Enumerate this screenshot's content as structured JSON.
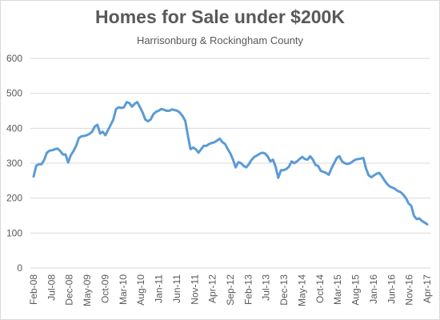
{
  "chart_data": {
    "type": "line",
    "title": "Homes for Sale under $200K",
    "subtitle": "Harrisonburg & Rockingham County",
    "xlabel": "",
    "ylabel": "",
    "ylim": [
      0,
      600
    ],
    "y_ticks": [
      "0",
      "100",
      "200",
      "300",
      "400",
      "500",
      "600"
    ],
    "x_tick_labels": [
      "Feb-08",
      "Jul-08",
      "Dec-08",
      "May-09",
      "Oct-09",
      "Mar-10",
      "Aug-10",
      "Jan-11",
      "Jun-11",
      "Nov-11",
      "Apr-12",
      "Sep-12",
      "Feb-13",
      "Jul-13",
      "Dec-13",
      "May-14",
      "Oct-14",
      "Mar-15",
      "Aug-15",
      "Jan-16",
      "Jun-16",
      "Nov-16",
      "Apr-17"
    ],
    "grid": true,
    "legend": "none",
    "line_color": "#5b9bd5",
    "series": [
      {
        "values": [
          262,
          293,
          297,
          297,
          310,
          330,
          336,
          337,
          340,
          342,
          335,
          325,
          325,
          302,
          323,
          335,
          350,
          372,
          377,
          378,
          380,
          384,
          390,
          405,
          410,
          385,
          390,
          380,
          395,
          410,
          425,
          455,
          460,
          458,
          460,
          475,
          472,
          462,
          470,
          475,
          460,
          445,
          425,
          420,
          425,
          440,
          447,
          450,
          455,
          453,
          450,
          450,
          454,
          452,
          450,
          445,
          435,
          422,
          380,
          340,
          345,
          340,
          330,
          340,
          350,
          350,
          355,
          358,
          360,
          365,
          370,
          360,
          355,
          340,
          328,
          310,
          288,
          303,
          300,
          292,
          288,
          298,
          310,
          318,
          322,
          327,
          330,
          328,
          320,
          305,
          310,
          290,
          258,
          280,
          280,
          283,
          290,
          305,
          300,
          305,
          312,
          318,
          312,
          310,
          320,
          310,
          295,
          292,
          278,
          275,
          272,
          267,
          285,
          300,
          315,
          320,
          305,
          300,
          298,
          300,
          305,
          310,
          312,
          313,
          315,
          285,
          265,
          260,
          265,
          270,
          272,
          262,
          250,
          240,
          233,
          230,
          226,
          220,
          217,
          210,
          200,
          185,
          178,
          150,
          140,
          142,
          135,
          130,
          125
        ]
      }
    ]
  }
}
